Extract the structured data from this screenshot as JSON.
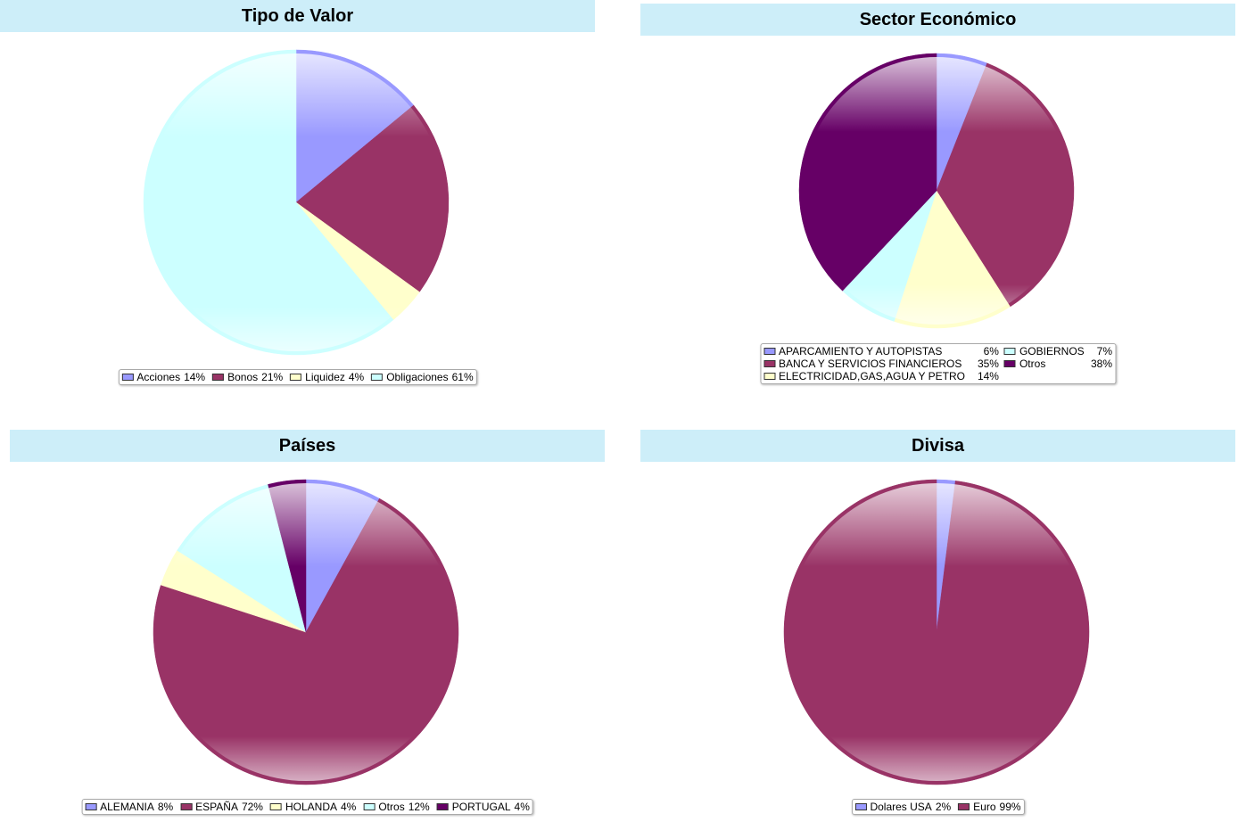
{
  "chart_data": [
    {
      "type": "pie",
      "title": "Sector Económico",
      "categories": [
        "APARCAMIENTO Y AUTOPISTAS",
        "BANCA Y SERVICIOS FINANCIEROS",
        "ELECTRICIDAD,GAS,AGUA Y PETRO",
        "GOBIERNOS",
        "Otros"
      ],
      "values": [
        6,
        35,
        14,
        7,
        38
      ],
      "value_labels": [
        "6%",
        "35%",
        "14%",
        "7%",
        "38%"
      ],
      "colors": [
        "#9999ff",
        "#993366",
        "#ffffcc",
        "#ccffff",
        "#660066"
      ]
    },
    {
      "type": "pie",
      "title": "Países",
      "categories": [
        "ALEMANIA",
        "ESPAÑA",
        "HOLANDA",
        "Otros",
        "PORTUGAL"
      ],
      "values": [
        8,
        72,
        4,
        12,
        4
      ],
      "value_labels": [
        "8%",
        "72%",
        "4%",
        "12%",
        "4%"
      ],
      "colors": [
        "#9999ff",
        "#993366",
        "#ffffcc",
        "#ccffff",
        "#660066"
      ]
    },
    {
      "type": "pie",
      "title": "Divisa",
      "categories": [
        "Dolares USA",
        "Euro"
      ],
      "values": [
        2,
        99
      ],
      "value_labels": [
        "2%",
        "99%"
      ],
      "colors": [
        "#9999ff",
        "#993366"
      ]
    },
    {
      "type": "pie",
      "title": "Tipo de Valor",
      "categories": [
        "Acciones",
        "Bonos",
        "Liquidez",
        "Obligaciones"
      ],
      "values": [
        14,
        21,
        4,
        61
      ],
      "value_labels": [
        "14%",
        "21%",
        "4%",
        "61%"
      ],
      "colors": [
        "#9999ff",
        "#993366",
        "#ffffcc",
        "#ccffff"
      ]
    }
  ]
}
